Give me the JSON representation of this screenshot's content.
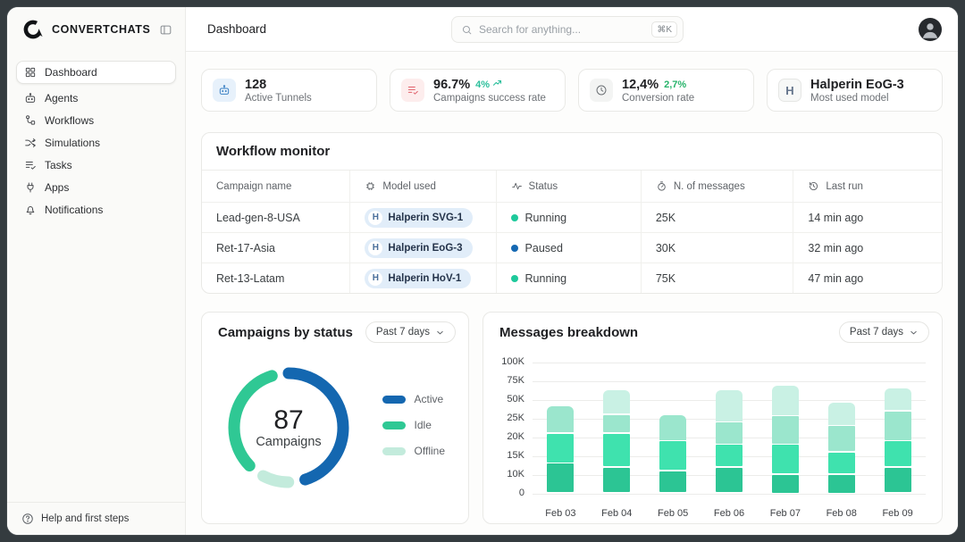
{
  "brand": {
    "name": "CONVERTCHATS"
  },
  "sidebar": {
    "items": [
      {
        "icon": "grid-icon",
        "label": "Dashboard",
        "active": true
      },
      {
        "icon": "robot-icon",
        "label": "Agents",
        "active": false
      },
      {
        "icon": "workflow-icon",
        "label": "Workflows",
        "active": false
      },
      {
        "icon": "shuffle-icon",
        "label": "Simulations",
        "active": false
      },
      {
        "icon": "tasks-icon",
        "label": "Tasks",
        "active": false
      },
      {
        "icon": "plug-icon",
        "label": "Apps",
        "active": false
      },
      {
        "icon": "bell-icon",
        "label": "Notifications",
        "active": false
      }
    ],
    "footer": {
      "icon": "help-icon",
      "label": "Help and first steps"
    }
  },
  "topbar": {
    "title": "Dashboard",
    "search": {
      "placeholder": "Search for anything...",
      "shortcut": "⌘K"
    },
    "avatar": "user-photo"
  },
  "stats": [
    {
      "icon": "robot-icon",
      "icon_color": "#3d82c4",
      "icon_bg": "#e7f1fb",
      "value": "128",
      "label": "Active Tunnels"
    },
    {
      "icon": "lines-check-icon",
      "icon_color": "#e0606a",
      "icon_bg": "#fdeded",
      "value": "96.7%",
      "delta": "4%",
      "delta_icon": "trend-up-icon",
      "delta_color": "#2abf9b",
      "label": "Campaigns success rate"
    },
    {
      "icon": "clock-icon",
      "icon_color": "#6b7074",
      "icon_bg": "#f3f4f3",
      "value": "12,4%",
      "delta": "2,7%",
      "delta_color": "#27b36a",
      "label": "Conversion rate"
    },
    {
      "icon": "h-badge-icon",
      "icon_color": "#64748b",
      "icon_bg": "#f7f8f7",
      "value": "Halperin EoG-3",
      "label": "Most used model"
    }
  ],
  "workflow": {
    "title": "Workflow monitor",
    "columns": [
      {
        "icon": null,
        "label": "Campaign name"
      },
      {
        "icon": "chip-icon",
        "label": "Model used"
      },
      {
        "icon": "activity-icon",
        "label": "Status"
      },
      {
        "icon": "gauge-icon",
        "label": "N. of messages"
      },
      {
        "icon": "history-icon",
        "label": "Last run"
      }
    ],
    "rows": [
      {
        "campaign": "Lead-gen-8-USA",
        "model": "Halperin SVG-1",
        "status": "Running",
        "status_color": "#1ec99b",
        "messages": "25K",
        "last_run": "14 min ago"
      },
      {
        "campaign": "Ret-17-Asia",
        "model": "Halperin EoG-3",
        "status": "Paused",
        "status_color": "#1568b2",
        "messages": "30K",
        "last_run": "32 min ago"
      },
      {
        "campaign": "Ret-13-Latam",
        "model": "Halperin HoV-1",
        "status": "Running",
        "status_color": "#1ec99b",
        "messages": "75K",
        "last_run": "47 min ago"
      }
    ]
  },
  "chart_data": [
    {
      "id": "campaigns-by-status",
      "type": "pie",
      "title": "Campaigns by status",
      "range_label": "Past 7 days",
      "center_value": "87",
      "center_label": "Campaigns",
      "legend_position": "right",
      "segments_clockwise_from_top": [
        {
          "label": "Active",
          "share_pct": 53,
          "color": "#1467b0"
        },
        {
          "label": "Offline",
          "share_pct": 9,
          "color": "#c3ebdc"
        },
        {
          "label": "Idle",
          "share_pct": 38,
          "color": "#2fc894"
        }
      ],
      "legend": [
        {
          "label": "Active",
          "color": "#1467b0"
        },
        {
          "label": "Idle",
          "color": "#2fc894"
        },
        {
          "label": "Offline",
          "color": "#c3ebdc"
        }
      ]
    },
    {
      "id": "messages-breakdown",
      "type": "bar",
      "stacked": true,
      "title": "Messages breakdown",
      "range_label": "Past 7 days",
      "unit": "K messages",
      "grid": true,
      "categories": [
        "Feb 03",
        "Feb 04",
        "Feb 05",
        "Feb 06",
        "Feb 07",
        "Feb 08",
        "Feb 09"
      ],
      "y_ticks_bottom_to_top": [
        "0",
        "10K",
        "15K",
        "20K",
        "25K",
        "50K",
        "75K",
        "100K"
      ],
      "y_tick_values": [
        0,
        10,
        15,
        20,
        25,
        50,
        75,
        100
      ],
      "series_colors_bottom_to_top": [
        "#2cc594",
        "#3fe2ae",
        "#9be6cd",
        "#c9f1e4"
      ],
      "values_per_category_bottom_to_top": [
        [
          13,
          8,
          21,
          0
        ],
        [
          12,
          9,
          9,
          33
        ],
        [
          11,
          8,
          11,
          0
        ],
        [
          12,
          6,
          6,
          39
        ],
        [
          10,
          8,
          10,
          41
        ],
        [
          10,
          6,
          7,
          23
        ],
        [
          12,
          7,
          16,
          31
        ]
      ]
    }
  ]
}
